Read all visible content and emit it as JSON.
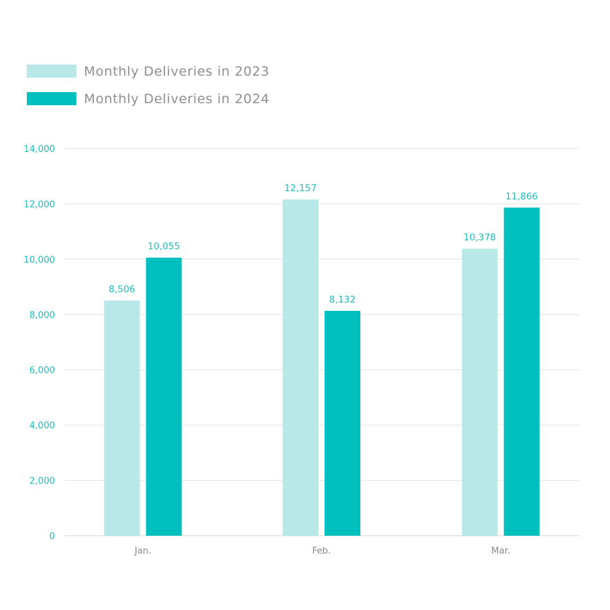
{
  "chart_data": {
    "type": "bar",
    "categories": [
      "Jan.",
      "Feb.",
      "Mar."
    ],
    "series": [
      {
        "name": "Monthly Deliveries in 2023",
        "values": [
          8506,
          12157,
          10378
        ],
        "labels": [
          "8,506",
          "12,157",
          "10,378"
        ],
        "color": "#b8e8e8"
      },
      {
        "name": "Monthly Deliveries in 2024",
        "values": [
          10055,
          8132,
          11866
        ],
        "labels": [
          "10,055",
          "8,132",
          "11,866"
        ],
        "color": "#00bfbf"
      }
    ],
    "ylim": [
      0,
      14000
    ],
    "yticks": [
      0,
      2000,
      4000,
      6000,
      8000,
      10000,
      12000,
      14000
    ],
    "ytick_labels": [
      "0",
      "2,000",
      "4,000",
      "6,000",
      "8,000",
      "10,000",
      "12,000",
      "14,000"
    ],
    "grid": true,
    "legend_position": "top-left"
  }
}
